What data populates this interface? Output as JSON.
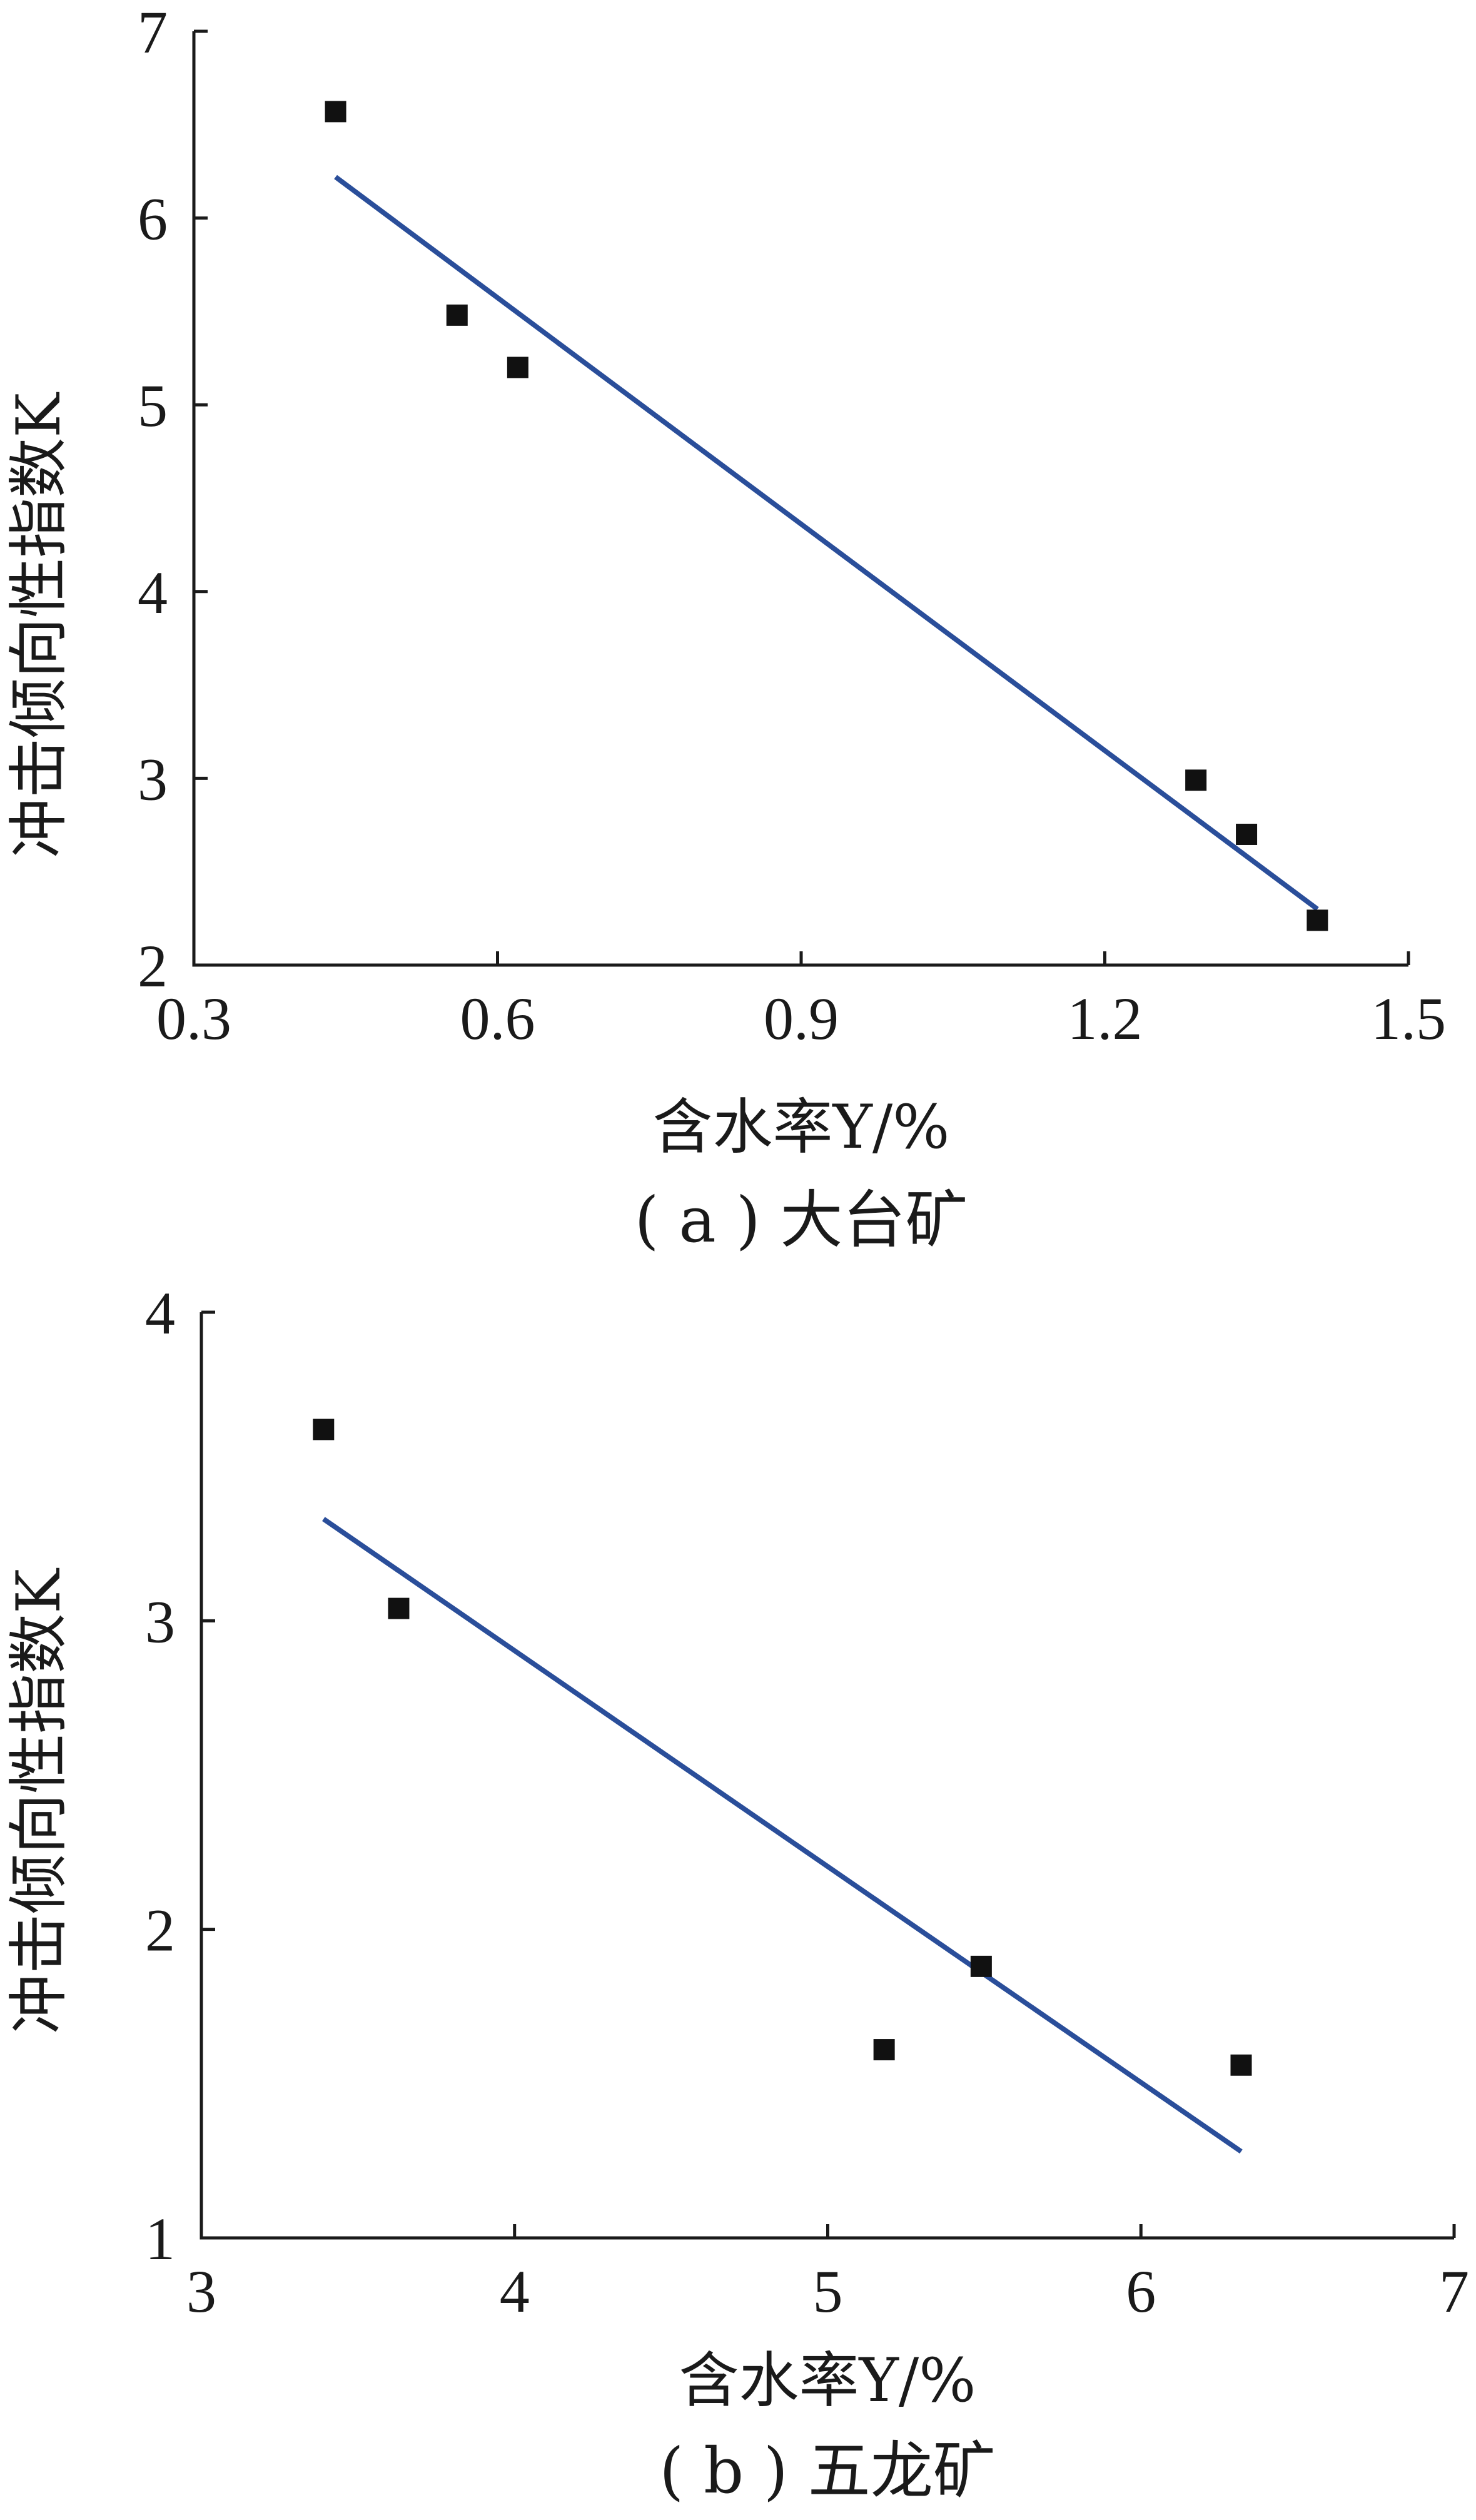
{
  "chart_data": [
    {
      "type": "scatter",
      "caption": "( a ) 大台矿",
      "xlabel": "含水率Y/%",
      "ylabel": "冲击倾向性指数K",
      "xlim": [
        0.3,
        1.5
      ],
      "ylim": [
        2,
        7
      ],
      "xticks": [
        0.3,
        0.6,
        0.9,
        1.2,
        1.5
      ],
      "xtick_labels": [
        "0.3",
        "0.6",
        "0.9",
        "1.2",
        "1.5"
      ],
      "yticks": [
        2,
        3,
        4,
        5,
        6,
        7
      ],
      "ytick_labels": [
        "2",
        "3",
        "4",
        "5",
        "6",
        "7"
      ],
      "points": [
        {
          "x": 0.44,
          "y": 6.57
        },
        {
          "x": 0.56,
          "y": 5.48
        },
        {
          "x": 0.62,
          "y": 5.2
        },
        {
          "x": 1.29,
          "y": 2.99
        },
        {
          "x": 1.34,
          "y": 2.7
        },
        {
          "x": 1.41,
          "y": 2.24
        }
      ],
      "fit_line": [
        {
          "x": 0.44,
          "y": 6.22
        },
        {
          "x": 1.41,
          "y": 2.3
        }
      ],
      "colors": {
        "fit": "#2a4e9a",
        "marker": "#111111"
      }
    },
    {
      "type": "scatter",
      "caption": "( b ) 五龙矿",
      "xlabel": "含水率Y/%",
      "ylabel": "冲击倾向性指数K",
      "xlim": [
        3,
        7
      ],
      "ylim": [
        1,
        4
      ],
      "xticks": [
        3,
        4,
        5,
        6,
        7
      ],
      "xtick_labels": [
        "3",
        "4",
        "5",
        "6",
        "7"
      ],
      "yticks": [
        1,
        2,
        3,
        4
      ],
      "ytick_labels": [
        "1",
        "2",
        "3",
        "4"
      ],
      "points": [
        {
          "x": 3.39,
          "y": 3.62
        },
        {
          "x": 3.63,
          "y": 3.04
        },
        {
          "x": 5.18,
          "y": 1.61
        },
        {
          "x": 5.49,
          "y": 1.88
        },
        {
          "x": 6.32,
          "y": 1.56
        }
      ],
      "fit_line": [
        {
          "x": 3.39,
          "y": 3.33
        },
        {
          "x": 6.32,
          "y": 1.28
        }
      ],
      "colors": {
        "fit": "#2a4e9a",
        "marker": "#111111"
      }
    }
  ]
}
